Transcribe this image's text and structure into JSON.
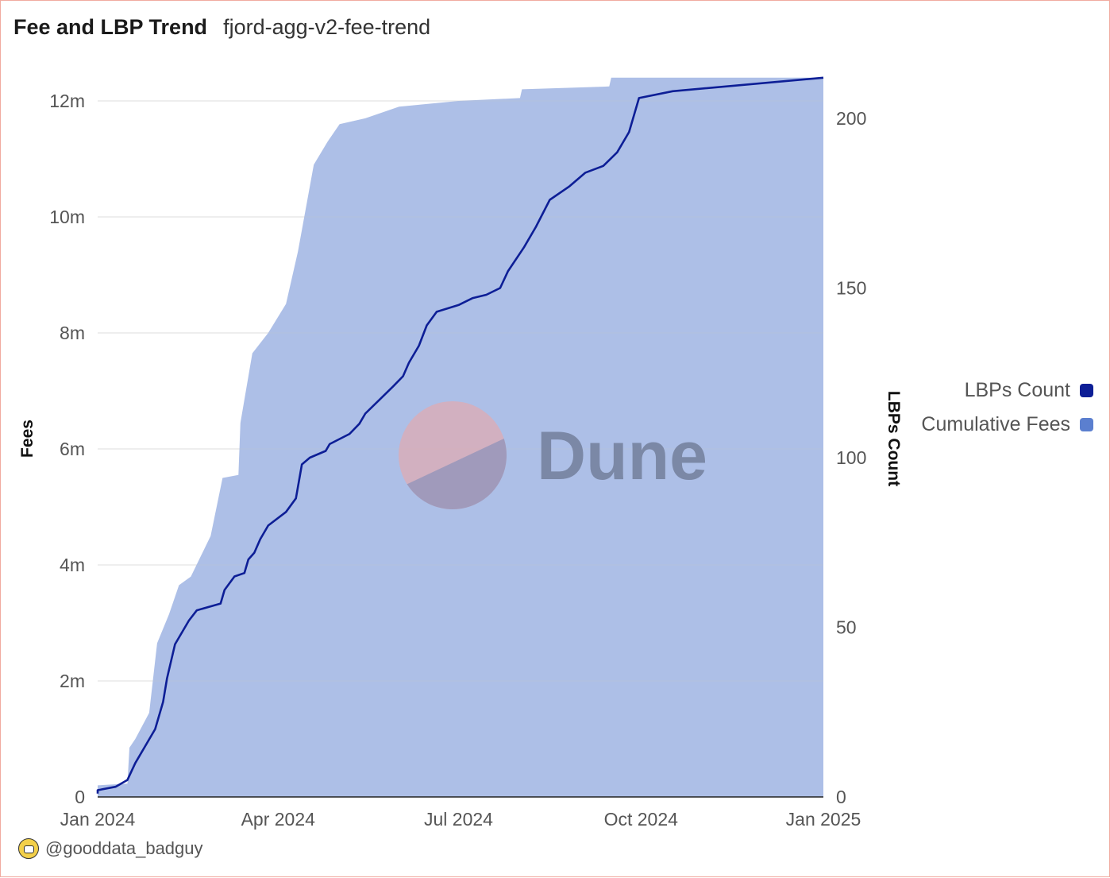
{
  "header": {
    "title": "Fee and LBP Trend",
    "subtitle": "fjord-agg-v2-fee-trend"
  },
  "legend": {
    "items": [
      {
        "label": "LBPs Count",
        "color": "#0d1e96"
      },
      {
        "label": "Cumulative Fees",
        "color": "#5b7fcf"
      }
    ]
  },
  "watermark": {
    "text": "Dune"
  },
  "footer": {
    "author": "@gooddata_badguy",
    "avatar_icon": "avatar-icon"
  },
  "chart_data": {
    "type": "area",
    "x_type": "date",
    "xlim": [
      "2024-01-01",
      "2025-01-01"
    ],
    "x_ticks": [
      "2024-01-01",
      "2024-04-01",
      "2024-07-01",
      "2024-10-01",
      "2025-01-01"
    ],
    "x_tick_labels": [
      "Jan 2024",
      "Apr 2024",
      "Jul 2024",
      "Oct 2024",
      "Jan 2025"
    ],
    "y_left": {
      "label": "Fees",
      "lim": [
        0,
        12000000
      ],
      "ticks": [
        0,
        2000000,
        4000000,
        6000000,
        8000000,
        10000000,
        12000000
      ],
      "tick_labels": [
        "0",
        "2m",
        "4m",
        "6m",
        "8m",
        "10m",
        "12m"
      ]
    },
    "y_right": {
      "label": "LBPs Count",
      "lim": [
        0,
        200
      ],
      "ticks": [
        0,
        50,
        100,
        150,
        200
      ],
      "tick_labels": [
        "0",
        "50",
        "100",
        "150",
        "200"
      ]
    },
    "grid": true,
    "legend_position": "right",
    "series": [
      {
        "name": "Cumulative Fees",
        "axis": "left",
        "style": "area",
        "color": "#5b7fcf",
        "points": [
          [
            "2024-01-01",
            200000
          ],
          [
            "2024-01-16",
            230000
          ],
          [
            "2024-01-17",
            850000
          ],
          [
            "2024-01-20",
            1000000
          ],
          [
            "2024-01-27",
            1450000
          ],
          [
            "2024-01-31",
            2650000
          ],
          [
            "2024-02-06",
            3150000
          ],
          [
            "2024-02-11",
            3650000
          ],
          [
            "2024-02-17",
            3800000
          ],
          [
            "2024-02-27",
            4500000
          ],
          [
            "2024-03-04",
            5500000
          ],
          [
            "2024-03-12",
            5550000
          ],
          [
            "2024-03-13",
            6450000
          ],
          [
            "2024-03-19",
            7650000
          ],
          [
            "2024-03-27",
            8000000
          ],
          [
            "2024-04-05",
            8500000
          ],
          [
            "2024-04-11",
            9400000
          ],
          [
            "2024-04-19",
            10900000
          ],
          [
            "2024-04-26",
            11300000
          ],
          [
            "2024-05-02",
            11600000
          ],
          [
            "2024-05-15",
            11700000
          ],
          [
            "2024-06-01",
            11900000
          ],
          [
            "2024-07-01",
            12000000
          ],
          [
            "2024-08-01",
            12050000
          ],
          [
            "2024-08-02",
            12200000
          ],
          [
            "2024-09-15",
            12250000
          ],
          [
            "2024-09-16",
            12400000
          ],
          [
            "2025-01-01",
            12400000
          ]
        ]
      },
      {
        "name": "LBPs Count",
        "axis": "right",
        "style": "line",
        "color": "#0d1e96",
        "points": [
          [
            "2024-01-01",
            1
          ],
          [
            "2024-01-01",
            2
          ],
          [
            "2024-01-10",
            3
          ],
          [
            "2024-01-16",
            5
          ],
          [
            "2024-01-20",
            10
          ],
          [
            "2024-01-25",
            15
          ],
          [
            "2024-01-30",
            20
          ],
          [
            "2024-02-03",
            28
          ],
          [
            "2024-02-05",
            35
          ],
          [
            "2024-02-09",
            45
          ],
          [
            "2024-02-16",
            52
          ],
          [
            "2024-02-20",
            55
          ],
          [
            "2024-03-03",
            57
          ],
          [
            "2024-03-05",
            61
          ],
          [
            "2024-03-10",
            65
          ],
          [
            "2024-03-15",
            66
          ],
          [
            "2024-03-17",
            70
          ],
          [
            "2024-03-20",
            72
          ],
          [
            "2024-03-23",
            76
          ],
          [
            "2024-03-27",
            80
          ],
          [
            "2024-04-05",
            84
          ],
          [
            "2024-04-10",
            88
          ],
          [
            "2024-04-13",
            98
          ],
          [
            "2024-04-17",
            100
          ],
          [
            "2024-04-25",
            102
          ],
          [
            "2024-04-27",
            104
          ],
          [
            "2024-05-07",
            107
          ],
          [
            "2024-05-12",
            110
          ],
          [
            "2024-05-15",
            113
          ],
          [
            "2024-05-22",
            117
          ],
          [
            "2024-05-29",
            121
          ],
          [
            "2024-06-03",
            124
          ],
          [
            "2024-06-06",
            128
          ],
          [
            "2024-06-11",
            133
          ],
          [
            "2024-06-15",
            139
          ],
          [
            "2024-06-20",
            143
          ],
          [
            "2024-07-01",
            145
          ],
          [
            "2024-07-08",
            147
          ],
          [
            "2024-07-15",
            148
          ],
          [
            "2024-07-22",
            150
          ],
          [
            "2024-07-26",
            155
          ],
          [
            "2024-08-03",
            162
          ],
          [
            "2024-08-09",
            168
          ],
          [
            "2024-08-16",
            176
          ],
          [
            "2024-08-26",
            180
          ],
          [
            "2024-09-03",
            184
          ],
          [
            "2024-09-12",
            186
          ],
          [
            "2024-09-19",
            190
          ],
          [
            "2024-09-25",
            196
          ],
          [
            "2024-09-30",
            206
          ],
          [
            "2024-10-17",
            208
          ],
          [
            "2025-01-01",
            212
          ]
        ]
      }
    ]
  }
}
